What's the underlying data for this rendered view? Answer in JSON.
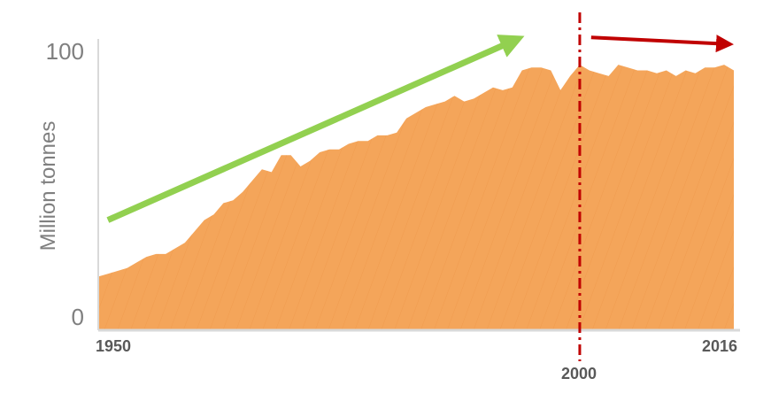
{
  "chart_data": {
    "type": "area",
    "ylabel": "Million tonnes",
    "ylim": [
      0,
      100
    ],
    "xlim": [
      1950,
      2016
    ],
    "x_tick_labels": [
      "1950",
      "2000",
      "2016"
    ],
    "y_tick_labels": [
      "0",
      "100"
    ],
    "reference_line": {
      "x": 2000,
      "style": "dash-dot",
      "color": "#c00000"
    },
    "trend_arrows": [
      {
        "from": [
          1951,
          39
        ],
        "to": [
          1994,
          104
        ],
        "color": "#92d050"
      },
      {
        "from": [
          2001,
          104
        ],
        "to": [
          2016,
          102
        ],
        "color": "#c00000"
      }
    ],
    "fill_color": "#f4a55a",
    "series": [
      {
        "x": [
          1950,
          1951,
          1952,
          1953,
          1954,
          1955,
          1956,
          1957,
          1958,
          1959,
          1960,
          1961,
          1962,
          1963,
          1964,
          1965,
          1966,
          1967,
          1968,
          1969,
          1970,
          1971,
          1972,
          1973,
          1974,
          1975,
          1976,
          1977,
          1978,
          1979,
          1980,
          1981,
          1982,
          1983,
          1984,
          1985,
          1986,
          1987,
          1988,
          1989,
          1990,
          1991,
          1992,
          1993,
          1994,
          1995,
          1996,
          1997,
          1998,
          1999,
          2000,
          2001,
          2002,
          2003,
          2004,
          2005,
          2006,
          2007,
          2008,
          2009,
          2010,
          2011,
          2012,
          2013,
          2014,
          2015,
          2016
        ],
        "values": [
          19,
          20,
          21,
          22,
          24,
          26,
          27,
          27,
          29,
          31,
          35,
          39,
          41,
          45,
          46,
          49,
          53,
          57,
          56,
          62,
          62,
          58,
          60,
          63,
          64,
          64,
          66,
          67,
          67,
          69,
          69,
          70,
          75,
          77,
          79,
          80,
          81,
          83,
          81,
          82,
          84,
          86,
          85,
          86,
          92,
          93,
          93,
          92,
          85,
          90,
          94,
          92,
          91,
          90,
          94,
          93,
          92,
          92,
          91,
          92,
          90,
          92,
          91,
          93,
          93,
          94,
          92
        ]
      }
    ]
  }
}
